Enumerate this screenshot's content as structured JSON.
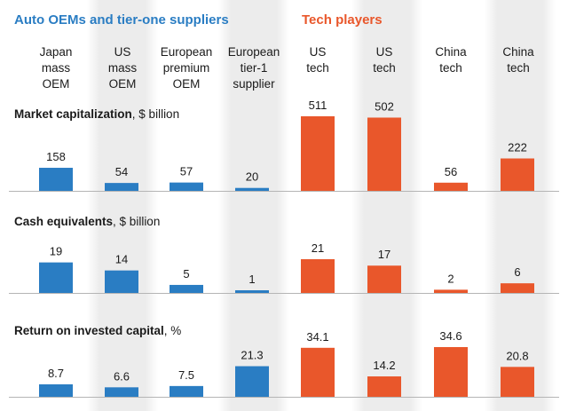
{
  "groups": {
    "auto": {
      "label": "Auto OEMs and tier-one suppliers",
      "color": "#2a7dc3"
    },
    "tech": {
      "label": "Tech players",
      "color": "#e9572b"
    }
  },
  "columns": [
    {
      "label": "Japan\nmass\nOEM",
      "group": "auto"
    },
    {
      "label": "US\nmass\nOEM",
      "group": "auto"
    },
    {
      "label": "European\npremium\nOEM",
      "group": "auto"
    },
    {
      "label": "European\ntier-1\nsupplier",
      "group": "auto"
    },
    {
      "label": "US\ntech",
      "group": "tech"
    },
    {
      "label": "US\ntech",
      "group": "tech"
    },
    {
      "label": "China\ntech",
      "group": "tech"
    },
    {
      "label": "China\ntech",
      "group": "tech"
    }
  ],
  "chart_data": [
    {
      "type": "bar",
      "title": "Market capitalization",
      "unit": ", $ billion",
      "values": [
        158,
        54,
        57,
        20,
        511,
        502,
        56,
        222
      ],
      "labels": [
        "158",
        "54",
        "57",
        "20",
        "511",
        "502",
        "56",
        "222"
      ]
    },
    {
      "type": "bar",
      "title": "Cash equivalents",
      "unit": ", $ billion",
      "values": [
        19,
        14,
        5,
        1,
        21,
        17,
        2,
        6
      ],
      "labels": [
        "19",
        "14",
        "5",
        "1",
        "21",
        "17",
        "2",
        "6"
      ]
    },
    {
      "type": "bar",
      "title": "Return on invested capital",
      "unit": ", %",
      "values": [
        8.7,
        6.6,
        7.5,
        21.3,
        34.1,
        14.2,
        34.6,
        20.8
      ],
      "labels": [
        "8.7",
        "6.6",
        "7.5",
        "21.3",
        "34.1",
        "14.2",
        "34.6",
        "20.8"
      ]
    }
  ]
}
